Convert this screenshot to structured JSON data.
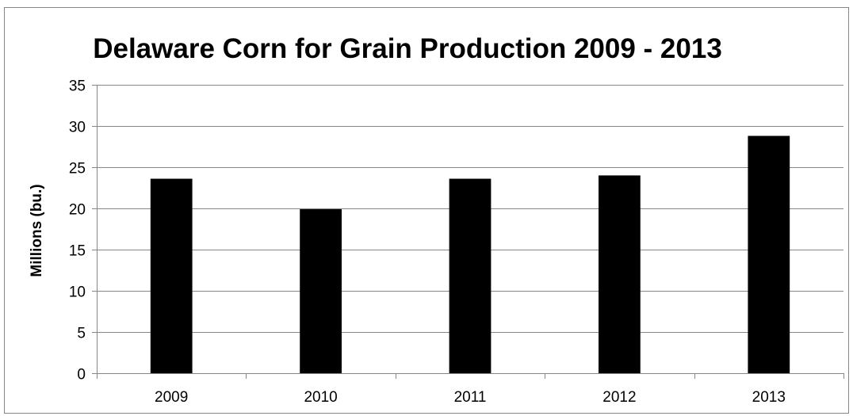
{
  "chart_data": {
    "type": "bar",
    "title": "Delaware Corn for Grain Production 2009 - 2013",
    "xlabel": "",
    "ylabel": "Millions (bu.)",
    "categories": [
      "2009",
      "2010",
      "2011",
      "2012",
      "2013"
    ],
    "series": [
      {
        "values": [
          23.6,
          19.9,
          23.6,
          24.0,
          28.8
        ]
      }
    ],
    "ylim": [
      0,
      35
    ],
    "yticks": [
      0,
      5,
      10,
      15,
      20,
      25,
      30,
      35
    ],
    "grid": true,
    "legend": "none",
    "colors": {
      "bar": "#000000",
      "grid": "#868686",
      "axis": "#868686"
    }
  }
}
